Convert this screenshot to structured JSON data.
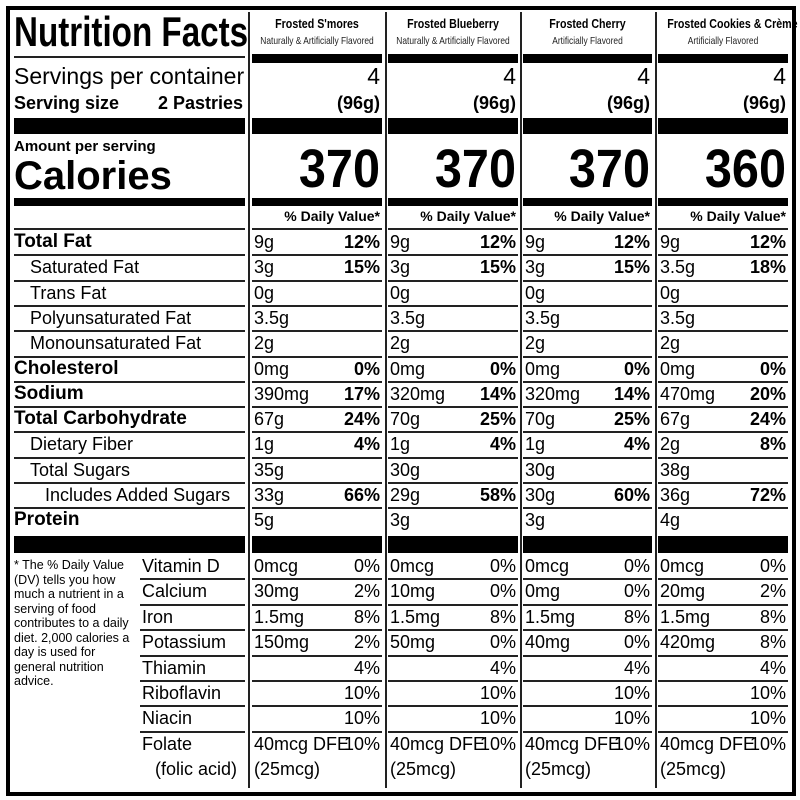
{
  "header": {
    "title": "Nutrition Facts",
    "servings_label": "Servings per container",
    "serving_size_label": "Serving size",
    "serving_size_value": "2 Pastries",
    "amount_per_serving": "Amount per serving",
    "calories_label": "Calories",
    "dv_header": "% Daily Value*"
  },
  "products": [
    {
      "name": "Frosted S'mores",
      "flavor": "Naturally & Artificially Flavored",
      "servings": "4",
      "serving_size": "(96g)",
      "calories": "370"
    },
    {
      "name": "Frosted Blueberry",
      "flavor": "Naturally & Artificially Flavored",
      "servings": "4",
      "serving_size": "(96g)",
      "calories": "370"
    },
    {
      "name": "Frosted Cherry",
      "flavor": "Artificially Flavored",
      "servings": "4",
      "serving_size": "(96g)",
      "calories": "370"
    },
    {
      "name": "Frosted Cookies & Crème",
      "flavor": "Artificially Flavored",
      "servings": "4",
      "serving_size": "(96g)",
      "calories": "360"
    }
  ],
  "nutrients": [
    {
      "label": "Total Fat",
      "bold": true,
      "indent": 0,
      "values": [
        {
          "amount": "9g",
          "dv": "12%"
        },
        {
          "amount": "9g",
          "dv": "12%"
        },
        {
          "amount": "9g",
          "dv": "12%"
        },
        {
          "amount": "9g",
          "dv": "12%"
        }
      ]
    },
    {
      "label": "Saturated Fat",
      "bold": false,
      "indent": 1,
      "values": [
        {
          "amount": "3g",
          "dv": "15%"
        },
        {
          "amount": "3g",
          "dv": "15%"
        },
        {
          "amount": "3g",
          "dv": "15%"
        },
        {
          "amount": "3.5g",
          "dv": "18%"
        }
      ]
    },
    {
      "label": "Trans Fat",
      "bold": false,
      "indent": 1,
      "values": [
        {
          "amount": "0g",
          "dv": ""
        },
        {
          "amount": "0g",
          "dv": ""
        },
        {
          "amount": "0g",
          "dv": ""
        },
        {
          "amount": "0g",
          "dv": ""
        }
      ]
    },
    {
      "label": "Polyunsaturated Fat",
      "bold": false,
      "indent": 1,
      "values": [
        {
          "amount": "3.5g",
          "dv": ""
        },
        {
          "amount": "3.5g",
          "dv": ""
        },
        {
          "amount": "3.5g",
          "dv": ""
        },
        {
          "amount": "3.5g",
          "dv": ""
        }
      ]
    },
    {
      "label": "Monounsaturated Fat",
      "bold": false,
      "indent": 1,
      "values": [
        {
          "amount": "2g",
          "dv": ""
        },
        {
          "amount": "2g",
          "dv": ""
        },
        {
          "amount": "2g",
          "dv": ""
        },
        {
          "amount": "2g",
          "dv": ""
        }
      ]
    },
    {
      "label": "Cholesterol",
      "bold": true,
      "indent": 0,
      "values": [
        {
          "amount": "0mg",
          "dv": "0%"
        },
        {
          "amount": "0mg",
          "dv": "0%"
        },
        {
          "amount": "0mg",
          "dv": "0%"
        },
        {
          "amount": "0mg",
          "dv": "0%"
        }
      ]
    },
    {
      "label": "Sodium",
      "bold": true,
      "indent": 0,
      "values": [
        {
          "amount": "390mg",
          "dv": "17%"
        },
        {
          "amount": "320mg",
          "dv": "14%"
        },
        {
          "amount": "320mg",
          "dv": "14%"
        },
        {
          "amount": "470mg",
          "dv": "20%"
        }
      ]
    },
    {
      "label": "Total Carbohydrate",
      "bold": true,
      "indent": 0,
      "values": [
        {
          "amount": "67g",
          "dv": "24%"
        },
        {
          "amount": "70g",
          "dv": "25%"
        },
        {
          "amount": "70g",
          "dv": "25%"
        },
        {
          "amount": "67g",
          "dv": "24%"
        }
      ]
    },
    {
      "label": "Dietary Fiber",
      "bold": false,
      "indent": 1,
      "values": [
        {
          "amount": "1g",
          "dv": "4%"
        },
        {
          "amount": "1g",
          "dv": "4%"
        },
        {
          "amount": "1g",
          "dv": "4%"
        },
        {
          "amount": "2g",
          "dv": "8%"
        }
      ]
    },
    {
      "label": "Total Sugars",
      "bold": false,
      "indent": 1,
      "values": [
        {
          "amount": "35g",
          "dv": ""
        },
        {
          "amount": "30g",
          "dv": ""
        },
        {
          "amount": "30g",
          "dv": ""
        },
        {
          "amount": "38g",
          "dv": ""
        }
      ]
    },
    {
      "label": "Includes Added Sugars",
      "bold": false,
      "indent": 2,
      "values": [
        {
          "amount": "33g",
          "dv": "66%"
        },
        {
          "amount": "29g",
          "dv": "58%"
        },
        {
          "amount": "30g",
          "dv": "60%"
        },
        {
          "amount": "36g",
          "dv": "72%"
        }
      ]
    },
    {
      "label": "Protein",
      "bold": true,
      "indent": 0,
      "values": [
        {
          "amount": "5g",
          "dv": ""
        },
        {
          "amount": "3g",
          "dv": ""
        },
        {
          "amount": "3g",
          "dv": ""
        },
        {
          "amount": "4g",
          "dv": ""
        }
      ]
    }
  ],
  "footnote": "* The % Daily Value (DV) tells you how much a nutrient in a serving of food contributes to a daily diet. 2,000 calories a day is used for general nutrition advice.",
  "vitamins": [
    {
      "label": "Vitamin D",
      "values": [
        {
          "amount": "0mcg",
          "dv": "0%"
        },
        {
          "amount": "0mcg",
          "dv": "0%"
        },
        {
          "amount": "0mcg",
          "dv": "0%"
        },
        {
          "amount": "0mcg",
          "dv": "0%"
        }
      ]
    },
    {
      "label": "Calcium",
      "values": [
        {
          "amount": "30mg",
          "dv": "2%"
        },
        {
          "amount": "10mg",
          "dv": "0%"
        },
        {
          "amount": "0mg",
          "dv": "0%"
        },
        {
          "amount": "20mg",
          "dv": "2%"
        }
      ]
    },
    {
      "label": "Iron",
      "values": [
        {
          "amount": "1.5mg",
          "dv": "8%"
        },
        {
          "amount": "1.5mg",
          "dv": "8%"
        },
        {
          "amount": "1.5mg",
          "dv": "8%"
        },
        {
          "amount": "1.5mg",
          "dv": "8%"
        }
      ]
    },
    {
      "label": "Potassium",
      "values": [
        {
          "amount": "150mg",
          "dv": "2%"
        },
        {
          "amount": "50mg",
          "dv": "0%"
        },
        {
          "amount": "40mg",
          "dv": "0%"
        },
        {
          "amount": "420mg",
          "dv": "8%"
        }
      ]
    },
    {
      "label": "Thiamin",
      "values": [
        {
          "amount": "",
          "dv": "4%"
        },
        {
          "amount": "",
          "dv": "4%"
        },
        {
          "amount": "",
          "dv": "4%"
        },
        {
          "amount": "",
          "dv": "4%"
        }
      ]
    },
    {
      "label": "Riboflavin",
      "values": [
        {
          "amount": "",
          "dv": "10%"
        },
        {
          "amount": "",
          "dv": "10%"
        },
        {
          "amount": "",
          "dv": "10%"
        },
        {
          "amount": "",
          "dv": "10%"
        }
      ]
    },
    {
      "label": "Niacin",
      "values": [
        {
          "amount": "",
          "dv": "10%"
        },
        {
          "amount": "",
          "dv": "10%"
        },
        {
          "amount": "",
          "dv": "10%"
        },
        {
          "amount": "",
          "dv": "10%"
        }
      ]
    },
    {
      "label": "Folate",
      "sublabel": "(folic acid)",
      "values": [
        {
          "amount": "40mcg DFE",
          "dv": "10%",
          "sub": "(25mcg)"
        },
        {
          "amount": "40mcg DFE",
          "dv": "10%",
          "sub": "(25mcg)"
        },
        {
          "amount": "40mcg DFE",
          "dv": "10%",
          "sub": "(25mcg)"
        },
        {
          "amount": "40mcg DFE",
          "dv": "10%",
          "sub": "(25mcg)"
        }
      ]
    }
  ]
}
